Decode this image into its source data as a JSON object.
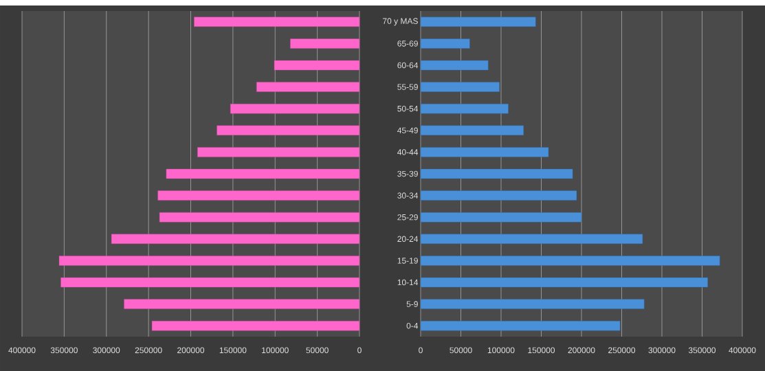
{
  "chart_data": [
    {
      "type": "bar",
      "orientation": "horizontal",
      "grid": "x",
      "categories": [
        null,
        null,
        null,
        null,
        null,
        null,
        null,
        null,
        null,
        null,
        null,
        null,
        null,
        null,
        null
      ],
      "series": [
        {
          "color": "#ff66cc",
          "values": [
            196000,
            82000,
            101000,
            122000,
            153000,
            169000,
            192000,
            229000,
            239000,
            237000,
            294000,
            356000,
            354000,
            279000,
            246000
          ]
        }
      ],
      "xlim": [
        400000,
        0
      ],
      "xticks": [
        400000,
        350000,
        300000,
        250000,
        200000,
        150000,
        100000,
        50000,
        0
      ]
    },
    {
      "type": "bar",
      "orientation": "horizontal",
      "grid": "x",
      "categories": [
        "70 y MAS",
        "65-69",
        "60-64",
        "55-59",
        "50-54",
        "45-49",
        "40-44",
        "35-39",
        "30-34",
        "25-29",
        "20-24",
        "15-19",
        "10-14",
        "5-9",
        "0-4"
      ],
      "series": [
        {
          "color": "#4a90d9",
          "values": [
            143000,
            61000,
            84000,
            98000,
            109000,
            128000,
            159000,
            189000,
            194000,
            200000,
            276000,
            372000,
            357000,
            278000,
            248000
          ]
        }
      ],
      "xlim": [
        0,
        400000
      ],
      "xticks": [
        0,
        50000,
        100000,
        150000,
        200000,
        250000,
        300000,
        350000,
        400000
      ]
    }
  ]
}
